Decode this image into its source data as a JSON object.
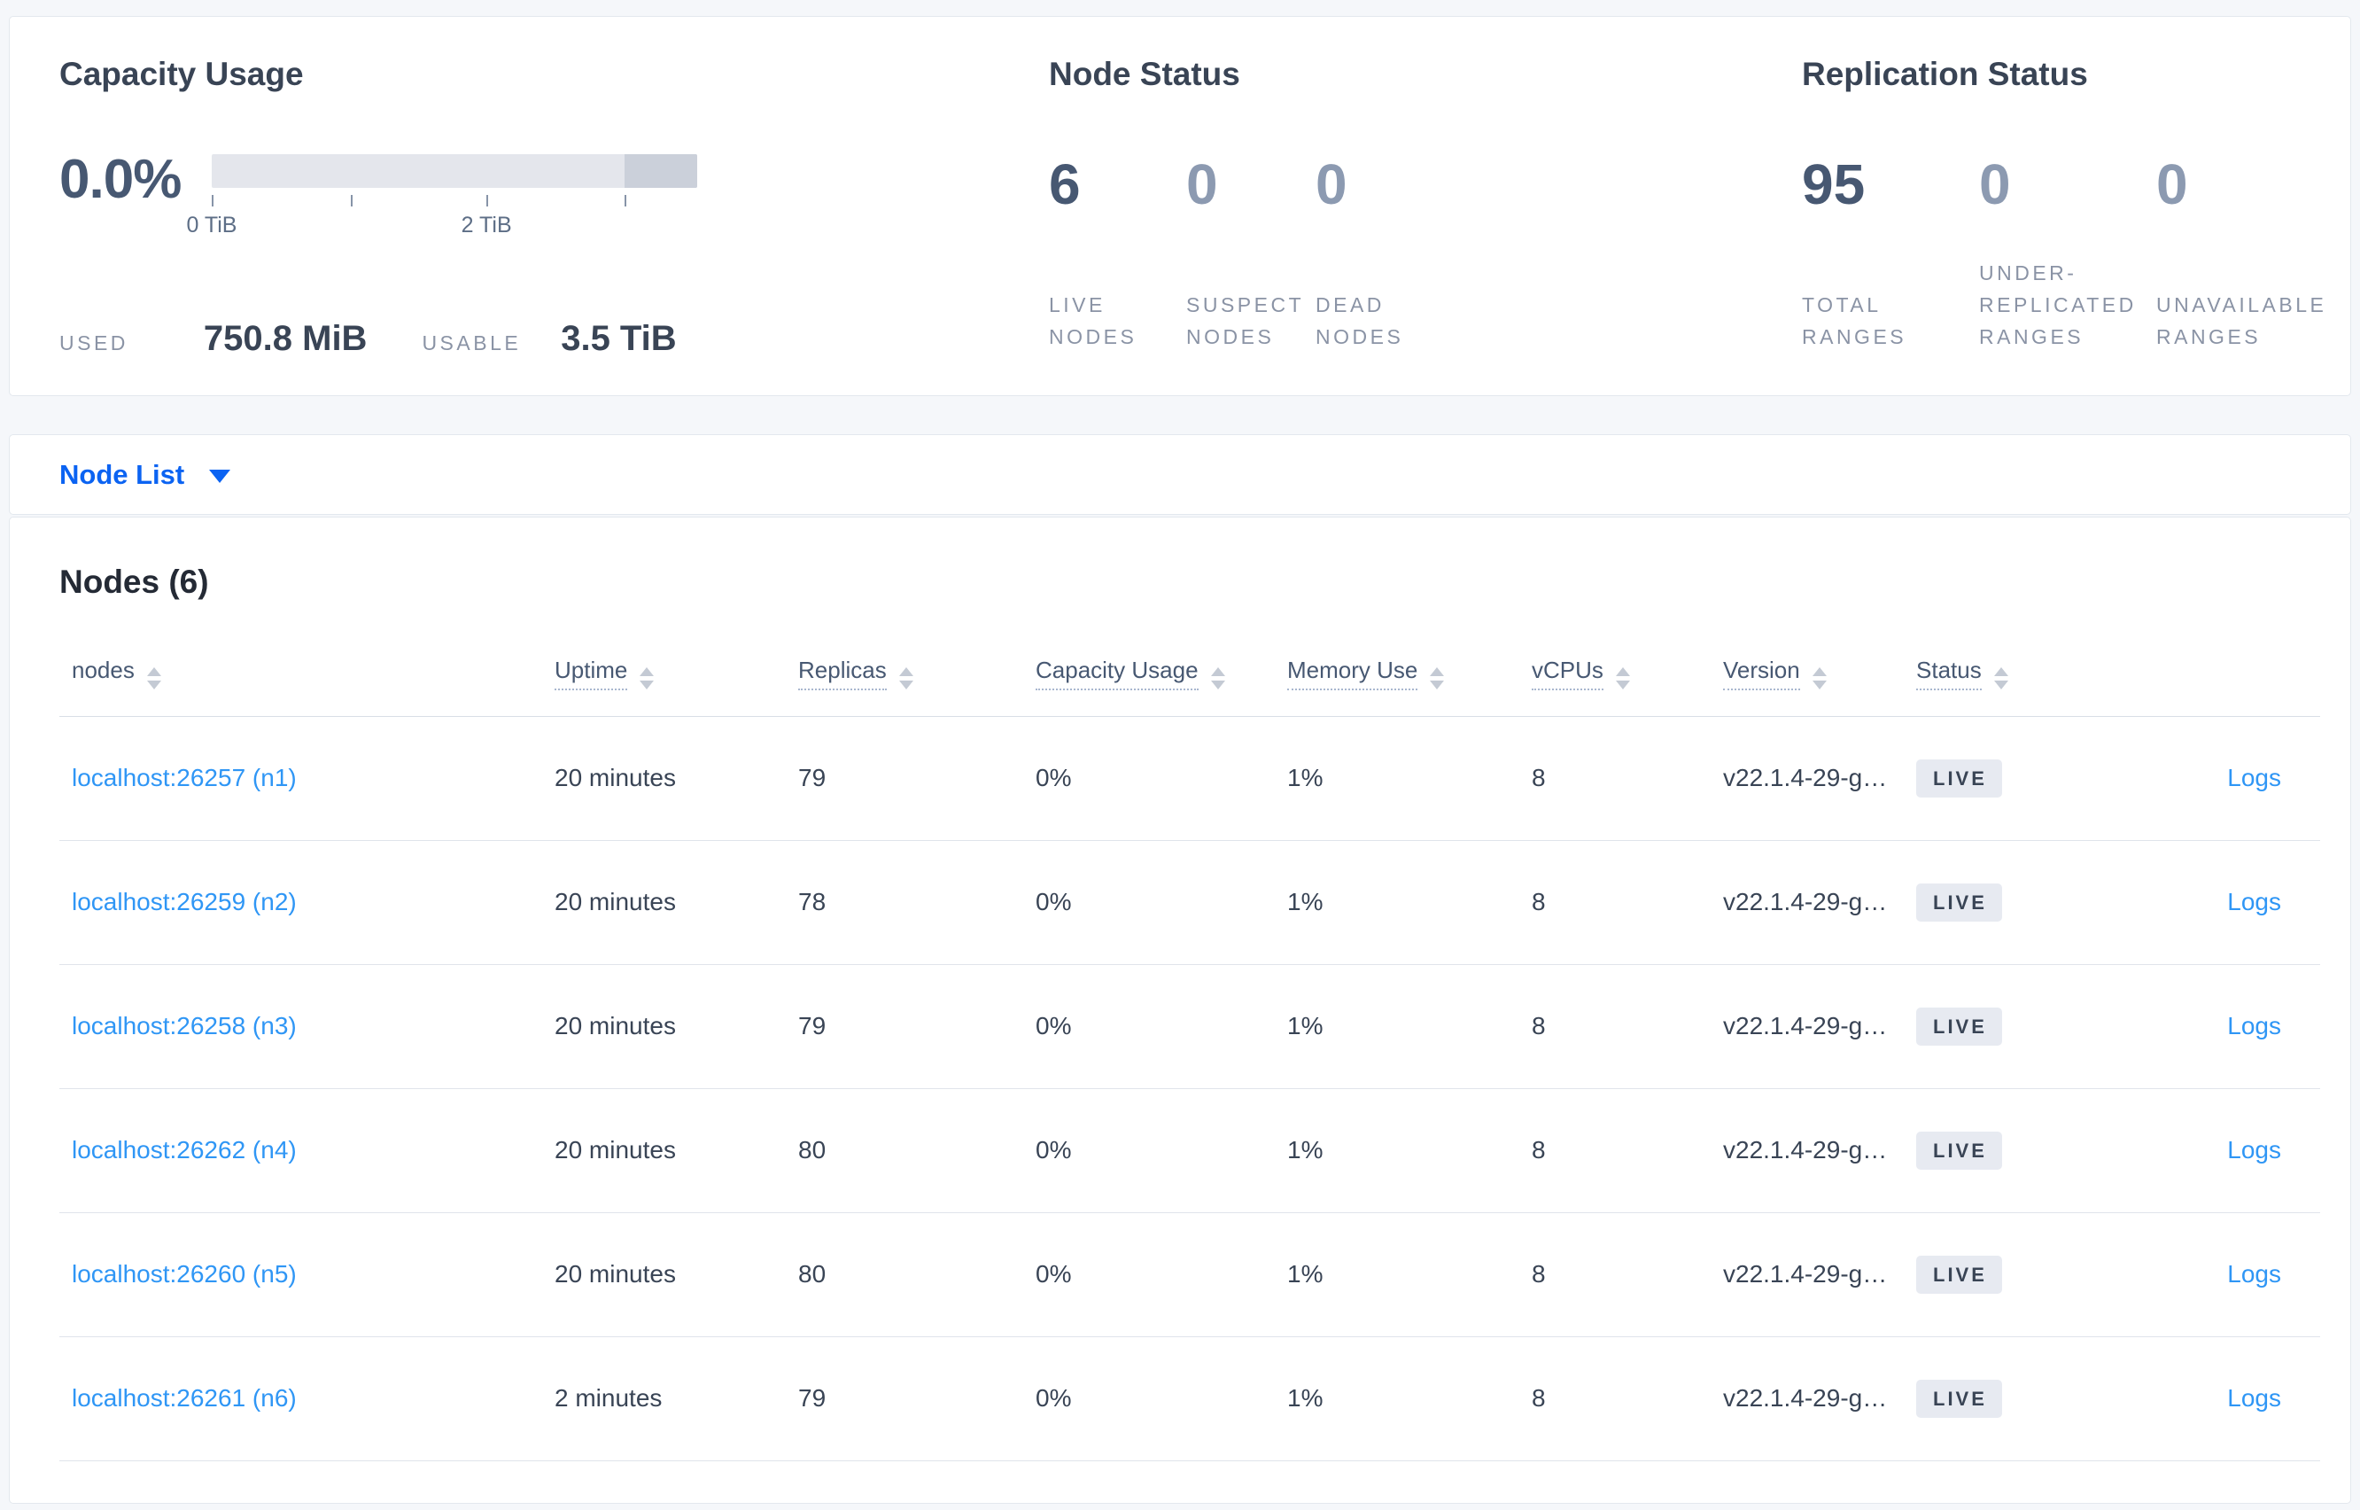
{
  "colors": {
    "page_bg": "#f5f7fa",
    "card_border": "#e3e8ee",
    "heading": "#394455",
    "stat_dark": "#475872",
    "stat_muted": "#8c9ab1",
    "label_gray": "#8a93a5",
    "action_blue": "#0b63f2",
    "link_blue": "#2f96f5",
    "badge_bg": "#e7eaf1",
    "bar_light": "#e4e6ec",
    "bar_dark": "#cbd0da"
  },
  "capacity": {
    "title": "Capacity Usage",
    "percent": "0.0%",
    "bar": {
      "dark_segment_start_pct": 85,
      "ticks": [
        {
          "pos_pct": 0,
          "label": "0 TiB"
        },
        {
          "pos_pct": 28.6,
          "label": ""
        },
        {
          "pos_pct": 56.6,
          "label": "2 TiB"
        },
        {
          "pos_pct": 85,
          "label": ""
        }
      ]
    },
    "used_label": "USED",
    "used_value": "750.8 MiB",
    "usable_label": "USABLE",
    "usable_value": "3.5 TiB"
  },
  "node_status": {
    "title": "Node Status",
    "stats": [
      {
        "value": "6",
        "label": "LIVE\nNODES",
        "muted": false
      },
      {
        "value": "0",
        "label": "SUSPECT\nNODES",
        "muted": true
      },
      {
        "value": "0",
        "label": "DEAD\nNODES",
        "muted": true
      }
    ]
  },
  "replication_status": {
    "title": "Replication Status",
    "stats": [
      {
        "value": "95",
        "label": "TOTAL\nRANGES",
        "muted": false
      },
      {
        "value": "0",
        "label": "UNDER-\nREPLICATED\nRANGES",
        "muted": true
      },
      {
        "value": "0",
        "label": "UNAVAILABLE\nRANGES",
        "muted": true
      }
    ]
  },
  "node_list": {
    "label": "Node List"
  },
  "nodes_section": {
    "title": "Nodes (6)",
    "columns": [
      {
        "label": "nodes",
        "sortable": true,
        "dotted": false
      },
      {
        "label": "Uptime",
        "sortable": true,
        "dotted": true
      },
      {
        "label": "Replicas",
        "sortable": true,
        "dotted": true
      },
      {
        "label": "Capacity Usage",
        "sortable": true,
        "dotted": true
      },
      {
        "label": "Memory Use",
        "sortable": true,
        "dotted": true
      },
      {
        "label": "vCPUs",
        "sortable": true,
        "dotted": true
      },
      {
        "label": "Version",
        "sortable": true,
        "dotted": true
      },
      {
        "label": "Status",
        "sortable": true,
        "dotted": true
      },
      {
        "label": "",
        "sortable": false,
        "dotted": false
      }
    ],
    "rows": [
      {
        "node": "localhost:26257 (n1)",
        "uptime": "20 minutes",
        "replicas": "79",
        "capacity": "0%",
        "memory": "1%",
        "vcpus": "8",
        "version": "v22.1.4-29-g…",
        "status": "LIVE",
        "logs": "Logs"
      },
      {
        "node": "localhost:26259 (n2)",
        "uptime": "20 minutes",
        "replicas": "78",
        "capacity": "0%",
        "memory": "1%",
        "vcpus": "8",
        "version": "v22.1.4-29-g…",
        "status": "LIVE",
        "logs": "Logs"
      },
      {
        "node": "localhost:26258 (n3)",
        "uptime": "20 minutes",
        "replicas": "79",
        "capacity": "0%",
        "memory": "1%",
        "vcpus": "8",
        "version": "v22.1.4-29-g…",
        "status": "LIVE",
        "logs": "Logs"
      },
      {
        "node": "localhost:26262 (n4)",
        "uptime": "20 minutes",
        "replicas": "80",
        "capacity": "0%",
        "memory": "1%",
        "vcpus": "8",
        "version": "v22.1.4-29-g…",
        "status": "LIVE",
        "logs": "Logs"
      },
      {
        "node": "localhost:26260 (n5)",
        "uptime": "20 minutes",
        "replicas": "80",
        "capacity": "0%",
        "memory": "1%",
        "vcpus": "8",
        "version": "v22.1.4-29-g…",
        "status": "LIVE",
        "logs": "Logs"
      },
      {
        "node": "localhost:26261 (n6)",
        "uptime": "2 minutes",
        "replicas": "79",
        "capacity": "0%",
        "memory": "1%",
        "vcpus": "8",
        "version": "v22.1.4-29-g…",
        "status": "LIVE",
        "logs": "Logs"
      }
    ]
  }
}
